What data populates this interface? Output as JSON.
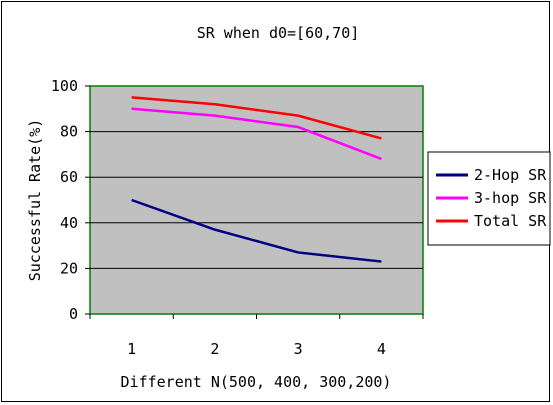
{
  "chart_data": {
    "type": "line",
    "title": "SR when d0=[60,70]",
    "xlabel": "Different N(500, 400, 300,200)",
    "ylabel": "Successful Rate(%)",
    "categories": [
      "1",
      "2",
      "3",
      "4"
    ],
    "ylim": [
      0,
      100
    ],
    "yticks": [
      "0",
      "20",
      "40",
      "60",
      "80",
      "100"
    ],
    "grid": true,
    "legend_position": "right",
    "plot_background": "#c0c0c0",
    "plot_border_color": "#008000",
    "series": [
      {
        "name": "2-Hop SR",
        "color": "#000080",
        "values": [
          50,
          37,
          27,
          23
        ]
      },
      {
        "name": "3-hop SR",
        "color": "#ff00ff",
        "values": [
          90,
          87,
          82,
          68
        ]
      },
      {
        "name": "Total SR",
        "color": "#ff0000",
        "values": [
          95,
          92,
          87,
          77
        ]
      }
    ]
  }
}
